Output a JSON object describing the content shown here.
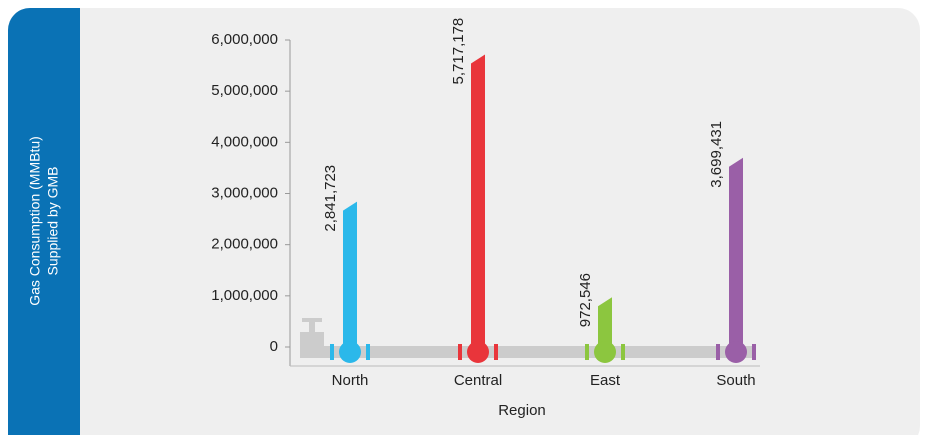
{
  "chart_data": {
    "type": "bar",
    "ylabel_lines": [
      "Gas Consumption (MMBtu)",
      "Supplied by GMB"
    ],
    "xlabel": "Region",
    "categories": [
      "North",
      "Central",
      "East",
      "South"
    ],
    "values": [
      2841723,
      5717178,
      972546,
      3699431
    ],
    "value_labels": [
      "2,841,723",
      "5,717,178",
      "972,546",
      "3,699,431"
    ],
    "colors": [
      "#2bb8ea",
      "#e9353b",
      "#8cc63f",
      "#9a5fa7"
    ],
    "ylim": [
      0,
      6000000
    ],
    "yticks": [
      0,
      {
        "value": 1000000,
        "label": "1,000,000"
      },
      {
        "value": 2000000,
        "label": "2,000,000"
      },
      {
        "value": 3000000,
        "label": "3,000,000"
      },
      {
        "value": 4000000,
        "label": "4,000,000"
      },
      {
        "value": 5000000,
        "label": "5,000,000"
      },
      {
        "value": 6000000,
        "label": "6,000,000"
      }
    ]
  }
}
